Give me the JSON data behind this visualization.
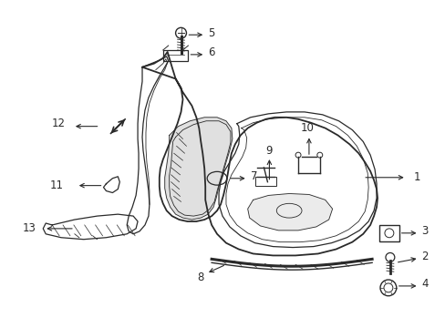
{
  "background_color": "#ffffff",
  "fig_width": 4.89,
  "fig_height": 3.6,
  "dpi": 100,
  "line_color": "#2a2a2a",
  "label_color": "#1a1a1a",
  "font_size": 8.5
}
